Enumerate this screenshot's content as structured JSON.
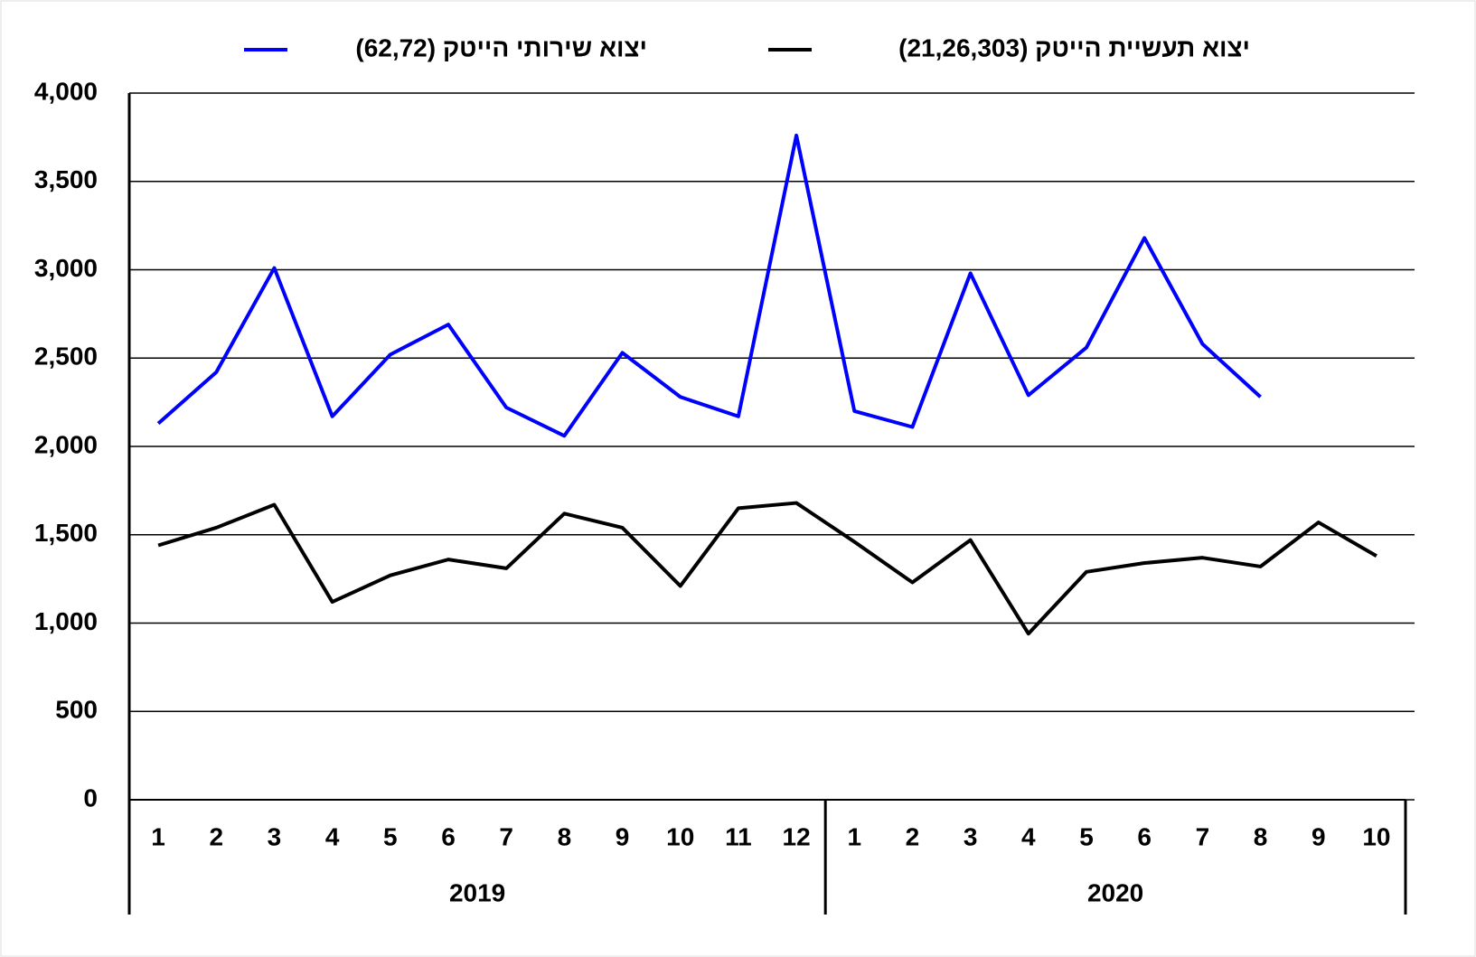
{
  "chart_data": {
    "type": "line",
    "groups": [
      {
        "label": "2019",
        "categories": [
          "1",
          "2",
          "3",
          "4",
          "5",
          "6",
          "7",
          "8",
          "9",
          "10",
          "11",
          "12"
        ]
      },
      {
        "label": "2020",
        "categories": [
          "1",
          "2",
          "3",
          "4",
          "5",
          "6",
          "7",
          "8",
          "9",
          "10"
        ]
      }
    ],
    "series": [
      {
        "name": "יצוא תעשיית הייטק (21,26,303)",
        "color": "#000000",
        "values": [
          1440,
          1540,
          1670,
          1120,
          1270,
          1360,
          1310,
          1620,
          1540,
          1210,
          1650,
          1680,
          1460,
          1230,
          1470,
          940,
          1290,
          1340,
          1370,
          1320,
          1570,
          1380
        ]
      },
      {
        "name": "יצוא שירותי הייטק (62,72)",
        "color": "#0000ff",
        "values": [
          2130,
          2420,
          3010,
          2170,
          2520,
          2690,
          2220,
          2060,
          2530,
          2280,
          2170,
          3760,
          2200,
          2110,
          2980,
          2290,
          2560,
          3180,
          2580,
          2280,
          null,
          null
        ]
      }
    ],
    "ylim": [
      0,
      4000
    ],
    "yticks": [
      0,
      500,
      {
        "value": 1000,
        "label": "1,000"
      },
      {
        "value": 1500,
        "label": "1,500"
      },
      {
        "value": 2000,
        "label": "2,000"
      },
      {
        "value": 2500,
        "label": "2,500"
      },
      {
        "value": 3000,
        "label": "3,000"
      },
      {
        "value": 3500,
        "label": "3,500"
      },
      {
        "value": 4000,
        "label": "4,000"
      }
    ],
    "grid": true,
    "legend": "top"
  }
}
